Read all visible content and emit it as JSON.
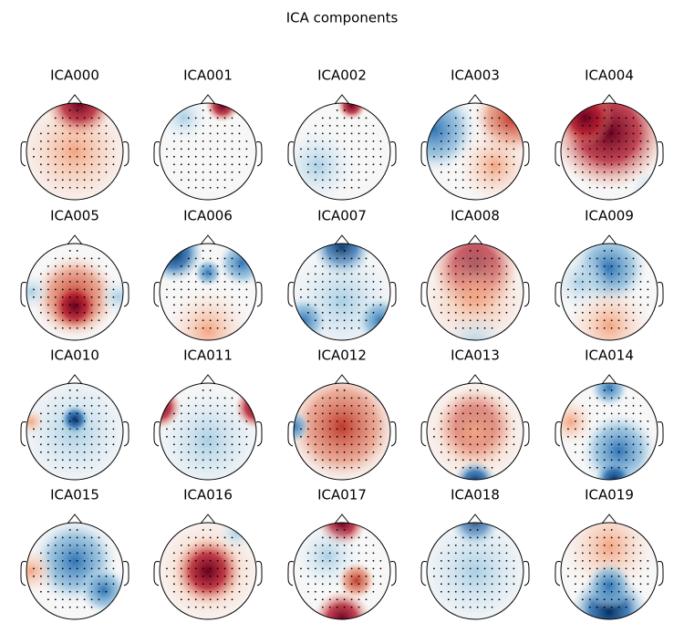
{
  "title": "ICA components",
  "components": [
    "ICA000",
    "ICA001",
    "ICA002",
    "ICA003",
    "ICA004",
    "ICA005",
    "ICA006",
    "ICA007",
    "ICA008",
    "ICA009",
    "ICA010",
    "ICA011",
    "ICA012",
    "ICA013",
    "ICA014",
    "ICA015",
    "ICA016",
    "ICA017",
    "ICA018",
    "ICA019"
  ]
}
